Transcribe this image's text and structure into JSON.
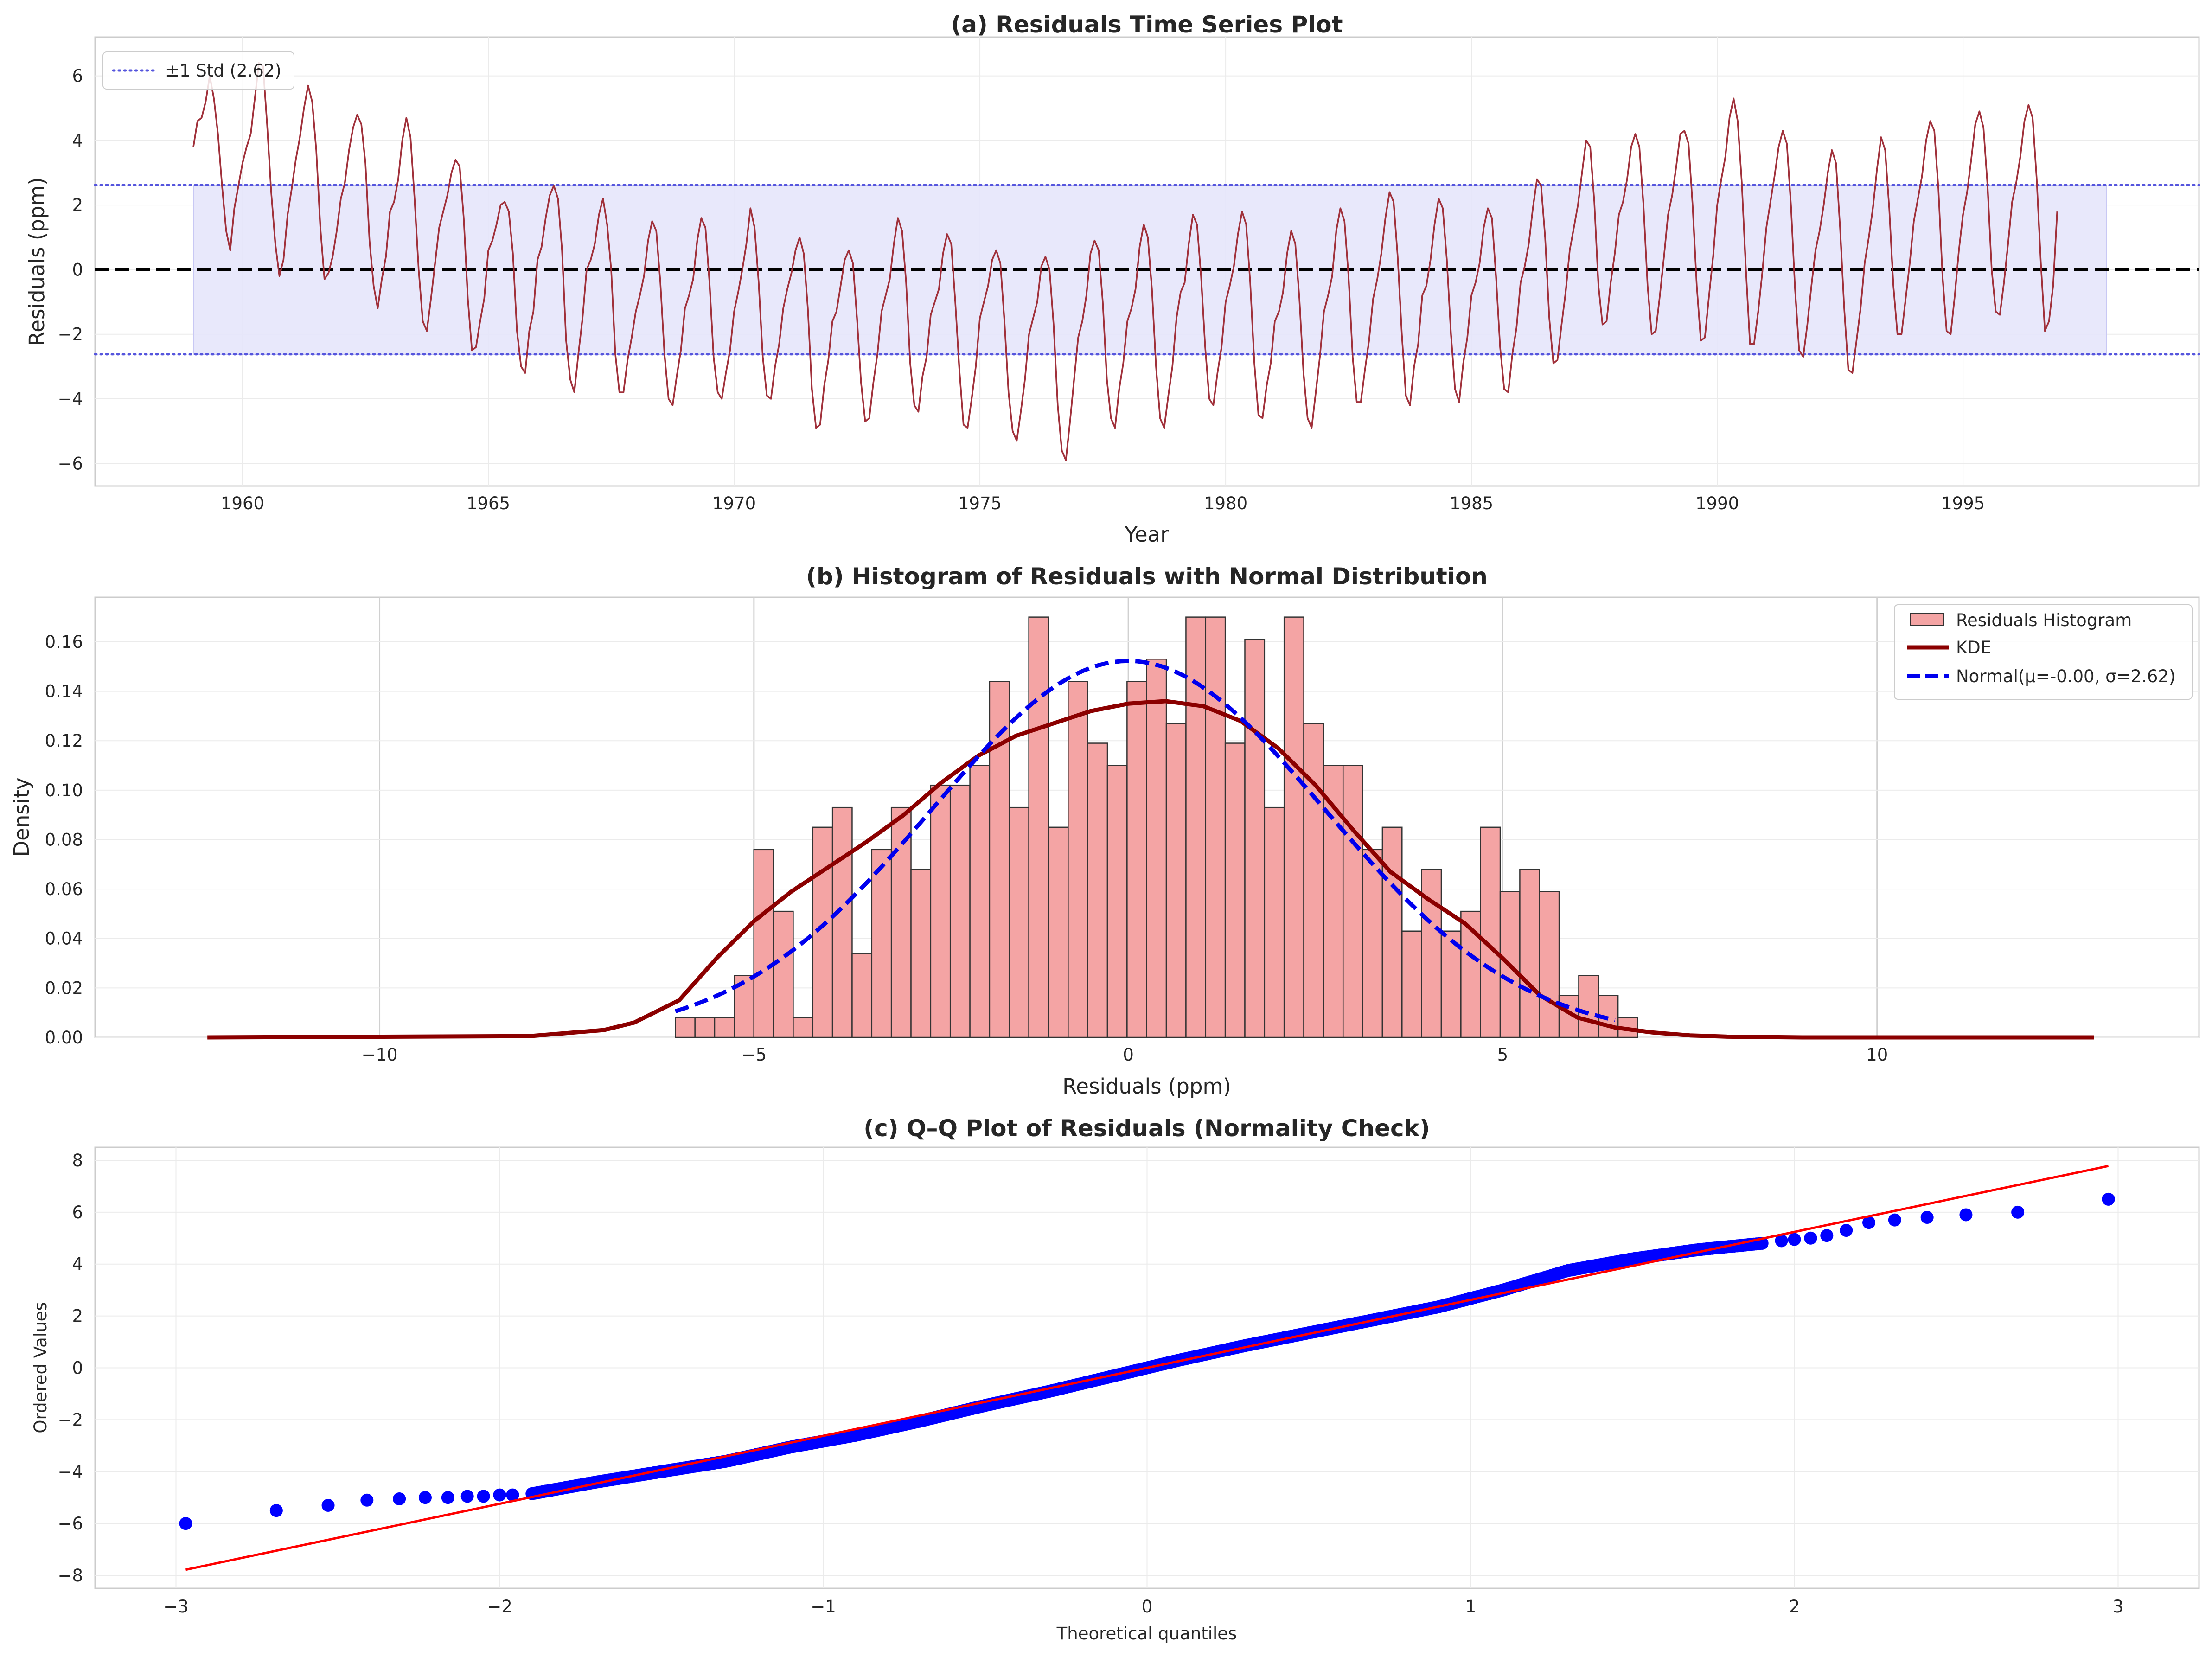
{
  "chart_data": [
    {
      "type": "line",
      "title": "(a) Residuals Time Series Plot",
      "xlabel": "Year",
      "ylabel": "Residuals (ppm)",
      "xlim": [
        1957,
        1999.8
      ],
      "ylim": [
        -6.7,
        7.2
      ],
      "xticks": [
        1960,
        1965,
        1970,
        1975,
        1980,
        1985,
        1990,
        1995
      ],
      "xtick_labels": [
        "1960",
        "1965",
        "1970",
        "1975",
        "1980",
        "1985",
        "1990",
        "1995"
      ],
      "yticks": [
        -6,
        -4,
        -2,
        0,
        2,
        4,
        6
      ],
      "ytick_labels": [
        "−6",
        "−4",
        "−2",
        "0",
        "2",
        "4",
        "6"
      ],
      "grid": true,
      "legend": {
        "placement": "upper-left",
        "entries": [
          "±1 Std (2.62)"
        ]
      },
      "std": 2.62,
      "band_x": [
        1959.0,
        1997.92
      ],
      "zero_line": 0,
      "colors": {
        "series": "#a0303a",
        "band": "#e5e5fb",
        "std_line": "#5555dd",
        "zero": "#000000"
      },
      "series": [
        {
          "x_start": 1959.0,
          "x_step": 0.08333,
          "values": [
            3.8,
            4.6,
            4.7,
            5.2,
            6.0,
            5.3,
            4.2,
            2.6,
            1.2,
            0.6,
            1.9,
            2.6,
            3.3,
            3.8,
            4.2,
            5.3,
            6.4,
            6.3,
            4.5,
            2.4,
            0.8,
            -0.2,
            0.3,
            1.7,
            2.5,
            3.4,
            4.1,
            5.0,
            5.7,
            5.2,
            3.7,
            1.3,
            -0.3,
            -0.1,
            0.4,
            1.2,
            2.2,
            2.7,
            3.7,
            4.4,
            4.8,
            4.5,
            3.3,
            0.9,
            -0.5,
            -1.2,
            -0.3,
            0.4,
            1.8,
            2.1,
            2.8,
            4.0,
            4.7,
            4.1,
            2.2,
            0.0,
            -1.6,
            -1.9,
            -0.9,
            0.2,
            1.3,
            1.8,
            2.3,
            3.0,
            3.4,
            3.2,
            1.6,
            -0.9,
            -2.5,
            -2.4,
            -1.6,
            -0.9,
            0.6,
            0.9,
            1.4,
            2.0,
            2.1,
            1.8,
            0.5,
            -1.9,
            -3.0,
            -3.2,
            -1.9,
            -1.3,
            0.3,
            0.7,
            1.6,
            2.3,
            2.6,
            2.2,
            0.6,
            -2.2,
            -3.4,
            -3.8,
            -2.6,
            -1.5,
            0.0,
            0.3,
            0.8,
            1.7,
            2.2,
            1.4,
            0.0,
            -2.6,
            -3.8,
            -3.8,
            -2.8,
            -2.1,
            -1.3,
            -0.8,
            -0.2,
            0.9,
            1.5,
            1.2,
            -0.4,
            -2.6,
            -4.0,
            -4.2,
            -3.3,
            -2.5,
            -1.2,
            -0.8,
            -0.3,
            0.9,
            1.6,
            1.3,
            -0.4,
            -2.7,
            -3.8,
            -4.0,
            -3.2,
            -2.5,
            -1.3,
            -0.7,
            0.0,
            0.8,
            1.9,
            1.3,
            -0.4,
            -2.7,
            -3.9,
            -4.0,
            -3.0,
            -2.3,
            -1.2,
            -0.6,
            -0.1,
            0.6,
            1.0,
            0.5,
            -1.2,
            -3.7,
            -4.9,
            -4.8,
            -3.6,
            -2.8,
            -1.6,
            -1.3,
            -0.5,
            0.3,
            0.6,
            0.2,
            -1.5,
            -3.5,
            -4.7,
            -4.6,
            -3.5,
            -2.6,
            -1.3,
            -0.8,
            -0.3,
            0.8,
            1.6,
            1.2,
            -0.4,
            -2.9,
            -4.2,
            -4.4,
            -3.3,
            -2.7,
            -1.4,
            -1.0,
            -0.6,
            0.5,
            1.1,
            0.8,
            -1.0,
            -3.1,
            -4.8,
            -4.9,
            -4.0,
            -3.0,
            -1.5,
            -1.0,
            -0.5,
            0.3,
            0.6,
            0.2,
            -1.6,
            -3.8,
            -5.0,
            -5.3,
            -4.4,
            -3.4,
            -2.0,
            -1.5,
            -1.0,
            0.1,
            0.4,
            0.0,
            -1.7,
            -4.2,
            -5.6,
            -5.9,
            -4.7,
            -3.4,
            -2.1,
            -1.6,
            -0.8,
            0.5,
            0.9,
            0.6,
            -1.0,
            -3.4,
            -4.6,
            -4.9,
            -3.7,
            -2.9,
            -1.6,
            -1.2,
            -0.6,
            0.7,
            1.4,
            1.0,
            -0.6,
            -3.0,
            -4.6,
            -4.9,
            -3.9,
            -3.0,
            -1.5,
            -0.7,
            -0.4,
            0.8,
            1.7,
            1.4,
            -0.2,
            -2.4,
            -4.0,
            -4.2,
            -3.2,
            -2.4,
            -1.0,
            -0.5,
            0.1,
            1.1,
            1.8,
            1.4,
            -0.4,
            -2.9,
            -4.5,
            -4.6,
            -3.6,
            -2.9,
            -1.6,
            -1.3,
            -0.7,
            0.5,
            1.2,
            0.8,
            -0.9,
            -3.2,
            -4.6,
            -4.9,
            -3.8,
            -2.7,
            -1.3,
            -0.8,
            -0.2,
            1.2,
            1.9,
            1.5,
            -0.2,
            -2.7,
            -4.1,
            -4.1,
            -3.1,
            -2.2,
            -0.9,
            -0.3,
            0.5,
            1.6,
            2.4,
            2.1,
            0.4,
            -2.0,
            -3.9,
            -4.2,
            -3.0,
            -2.3,
            -0.8,
            -0.5,
            0.3,
            1.4,
            2.2,
            1.9,
            0.3,
            -2.0,
            -3.7,
            -4.1,
            -2.9,
            -2.1,
            -0.8,
            -0.4,
            0.2,
            1.3,
            1.9,
            1.6,
            -0.2,
            -2.4,
            -3.7,
            -3.8,
            -2.6,
            -1.8,
            -0.4,
            0.1,
            0.8,
            1.9,
            2.8,
            2.6,
            1.0,
            -1.5,
            -2.9,
            -2.8,
            -1.7,
            -0.7,
            0.6,
            1.3,
            2.0,
            3.0,
            4.0,
            3.8,
            2.1,
            -0.5,
            -1.7,
            -1.6,
            -0.4,
            0.5,
            1.7,
            2.1,
            2.8,
            3.8,
            4.2,
            3.8,
            2.0,
            -0.5,
            -2.0,
            -1.9,
            -0.8,
            0.4,
            1.7,
            2.3,
            3.2,
            4.2,
            4.3,
            3.9,
            2.0,
            -0.5,
            -2.2,
            -2.1,
            -0.8,
            0.4,
            2.0,
            2.8,
            3.5,
            4.7,
            5.3,
            4.6,
            2.7,
            0.0,
            -2.3,
            -2.3,
            -1.3,
            -0.1,
            1.3,
            2.1,
            2.9,
            3.8,
            4.3,
            3.9,
            2.0,
            -0.6,
            -2.5,
            -2.7,
            -1.7,
            -0.5,
            0.6,
            1.2,
            2.0,
            3.0,
            3.7,
            3.3,
            1.3,
            -1.2,
            -3.1,
            -3.2,
            -2.2,
            -1.2,
            0.2,
            1.0,
            1.9,
            3.1,
            4.1,
            3.7,
            1.9,
            -0.5,
            -2.0,
            -2.0,
            -0.9,
            0.2,
            1.5,
            2.2,
            2.9,
            4.0,
            4.6,
            4.3,
            2.5,
            -0.2,
            -1.9,
            -2.0,
            -0.8,
            0.6,
            1.7,
            2.4,
            3.4,
            4.5,
            4.9,
            4.4,
            2.6,
            0.0,
            -1.3,
            -1.4,
            -0.4,
            0.8,
            2.1,
            2.7,
            3.5,
            4.6,
            5.1,
            4.7,
            2.8,
            0.2,
            -1.9,
            -1.6,
            -0.5,
            1.8
          ]
        }
      ]
    },
    {
      "type": "bar",
      "subtype": "histogram",
      "title": "(b) Histogram of Residuals with Normal Distribution",
      "xlabel": "Residuals (ppm)",
      "ylabel": "Density",
      "xlim": [
        -13.8,
        14.3
      ],
      "ylim": [
        0,
        0.178
      ],
      "xticks": [
        -10,
        -5,
        0,
        5,
        10
      ],
      "xtick_labels": [
        "−10",
        "−5",
        "0",
        "5",
        "10"
      ],
      "yticks": [
        0.0,
        0.02,
        0.04,
        0.06,
        0.08,
        0.1,
        0.12,
        0.14,
        0.16
      ],
      "ytick_labels": [
        "0.00",
        "0.02",
        "0.04",
        "0.06",
        "0.08",
        "0.10",
        "0.12",
        "0.14",
        "0.16"
      ],
      "grid": true,
      "legend": {
        "placement": "upper-right",
        "entries": [
          "Residuals Histogram",
          "KDE",
          "Normal(μ=-0.00, σ=2.62)"
        ]
      },
      "bin_start": -6.05,
      "bin_width": 0.2623,
      "densities": [
        0.008,
        0.008,
        0.008,
        0.025,
        0.076,
        0.051,
        0.008,
        0.085,
        0.093,
        0.034,
        0.076,
        0.093,
        0.068,
        0.102,
        0.102,
        0.11,
        0.144,
        0.093,
        0.17,
        0.085,
        0.144,
        0.119,
        0.11,
        0.144,
        0.153,
        0.127,
        0.17,
        0.17,
        0.119,
        0.161,
        0.093,
        0.17,
        0.127,
        0.11,
        0.11,
        0.076,
        0.085,
        0.043,
        0.068,
        0.043,
        0.051,
        0.085,
        0.059,
        0.068,
        0.059,
        0.017,
        0.025,
        0.017,
        0.008
      ],
      "kde": {
        "x": [
          -12.3,
          -8.0,
          -7.0,
          -6.6,
          -6.0,
          -5.5,
          -5.0,
          -4.5,
          -4.0,
          -3.5,
          -3.0,
          -2.5,
          -2.0,
          -1.5,
          -1.0,
          -0.5,
          0.0,
          0.5,
          1.0,
          1.5,
          2.0,
          2.5,
          3.0,
          3.5,
          4.0,
          4.5,
          5.0,
          5.5,
          6.0,
          6.5,
          7.0,
          7.5,
          8.0,
          9.0,
          10.0,
          12.9
        ],
        "y": [
          0.0,
          0.0005,
          0.003,
          0.006,
          0.015,
          0.032,
          0.047,
          0.059,
          0.069,
          0.079,
          0.09,
          0.103,
          0.114,
          0.122,
          0.127,
          0.132,
          0.135,
          0.136,
          0.134,
          0.128,
          0.117,
          0.102,
          0.084,
          0.067,
          0.056,
          0.046,
          0.032,
          0.017,
          0.008,
          0.004,
          0.002,
          0.0008,
          0.0003,
          0.0,
          0.0,
          0.0
        ]
      },
      "normal": {
        "mu": -0.0,
        "sigma": 2.62,
        "x_range": [
          -6.05,
          6.5
        ]
      },
      "colors": {
        "bar": "#f4a4a4",
        "bar_edge": "#333333",
        "kde": "#8b0000",
        "normal": "#0000ee"
      }
    },
    {
      "type": "scatter",
      "title": "(c) Q–Q Plot of Residuals (Normality Check)",
      "xlabel": "Theoretical quantiles",
      "ylabel": "Ordered Values",
      "xlim": [
        -3.25,
        3.25
      ],
      "ylim": [
        -8.5,
        8.5
      ],
      "xticks": [
        -3,
        -2,
        -1,
        0,
        1,
        2,
        3
      ],
      "xtick_labels": [
        "−3",
        "−2",
        "−1",
        "0",
        "1",
        "2",
        "3"
      ],
      "yticks": [
        -8,
        -6,
        -4,
        -2,
        0,
        2,
        4,
        6,
        8
      ],
      "ytick_labels": [
        "−8",
        "−6",
        "−4",
        "−2",
        "0",
        "2",
        "4",
        "6",
        "8"
      ],
      "grid": true,
      "n_points": 468,
      "fit_line": {
        "slope": 2.62,
        "intercept": 0.0,
        "x_range": [
          -2.97,
          2.97
        ]
      },
      "tail_points": [
        [
          -2.97,
          -6.0
        ],
        [
          -2.69,
          -5.5
        ],
        [
          -2.53,
          -5.3
        ],
        [
          -2.41,
          -5.1
        ],
        [
          -2.31,
          -5.05
        ],
        [
          -2.23,
          -5.0
        ],
        [
          -2.16,
          -5.0
        ],
        [
          -2.1,
          -4.95
        ],
        [
          -2.05,
          -4.95
        ],
        [
          -2.0,
          -4.9
        ],
        [
          -1.96,
          -4.9
        ],
        [
          1.96,
          4.9
        ],
        [
          2.0,
          4.95
        ],
        [
          2.05,
          5.0
        ],
        [
          2.1,
          5.1
        ],
        [
          2.16,
          5.3
        ],
        [
          2.23,
          5.6
        ],
        [
          2.31,
          5.7
        ],
        [
          2.41,
          5.8
        ],
        [
          2.53,
          5.9
        ],
        [
          2.69,
          6.0
        ],
        [
          2.97,
          6.5
        ]
      ],
      "central_points": [
        [
          -1.9,
          -4.85
        ],
        [
          -1.7,
          -4.4
        ],
        [
          -1.5,
          -4.0
        ],
        [
          -1.3,
          -3.6
        ],
        [
          -1.1,
          -3.05
        ],
        [
          -0.9,
          -2.6
        ],
        [
          -0.7,
          -2.05
        ],
        [
          -0.5,
          -1.45
        ],
        [
          -0.3,
          -0.9
        ],
        [
          -0.1,
          -0.3
        ],
        [
          0.0,
          0.0
        ],
        [
          0.1,
          0.3
        ],
        [
          0.3,
          0.85
        ],
        [
          0.5,
          1.35
        ],
        [
          0.7,
          1.85
        ],
        [
          0.9,
          2.35
        ],
        [
          1.1,
          3.0
        ],
        [
          1.3,
          3.75
        ],
        [
          1.5,
          4.2
        ],
        [
          1.7,
          4.55
        ],
        [
          1.9,
          4.8
        ]
      ],
      "colors": {
        "points": "#0000ff",
        "line": "#ff0000"
      }
    }
  ]
}
